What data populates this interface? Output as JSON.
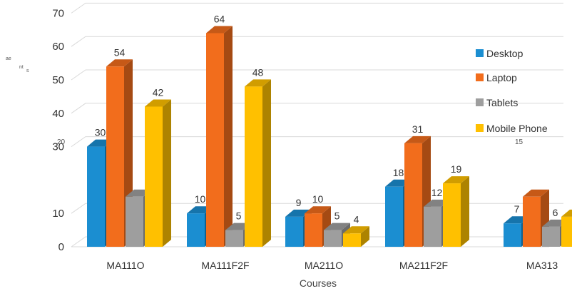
{
  "chart_data": {
    "type": "bar",
    "categories": [
      "MA111O",
      "MA111F2F",
      "MA211O",
      "MA211F2F",
      "MA313"
    ],
    "series": [
      {
        "name": "Desktop",
        "values": [
          30,
          10,
          9,
          18,
          7
        ],
        "color": "#1b8ed1"
      },
      {
        "name": "Laptop",
        "values": [
          54,
          64,
          10,
          31,
          15
        ],
        "color": "#f26d1c"
      },
      {
        "name": "Tablets",
        "values": [
          15,
          5,
          5,
          12,
          6
        ],
        "color": "#9e9e9e"
      },
      {
        "name": "Mobile Phone",
        "values": [
          42,
          48,
          4,
          19,
          9
        ],
        "color": "#ffc000"
      }
    ],
    "data_labels": [
      [
        "30",
        "10",
        "9",
        "18",
        "7"
      ],
      [
        "54",
        "64",
        "10",
        "31",
        ""
      ],
      [
        "",
        "5",
        "5",
        "12",
        "6"
      ],
      [
        "42",
        "48",
        "4",
        "19",
        "9"
      ]
    ],
    "y_tick_labels": [
      "0",
      "10",
      "30",
      "40",
      "50",
      "60",
      "70"
    ],
    "y_tick_values": [
      0,
      10,
      30,
      40,
      50,
      60,
      70
    ],
    "ylim": [
      0,
      70
    ],
    "xlabel": "Courses",
    "ylabel_fragments": [
      "ae",
      "nt",
      "s"
    ],
    "stray_labels": [
      "20",
      "15"
    ],
    "legend_position": "right",
    "grid": true,
    "three_d": true
  }
}
